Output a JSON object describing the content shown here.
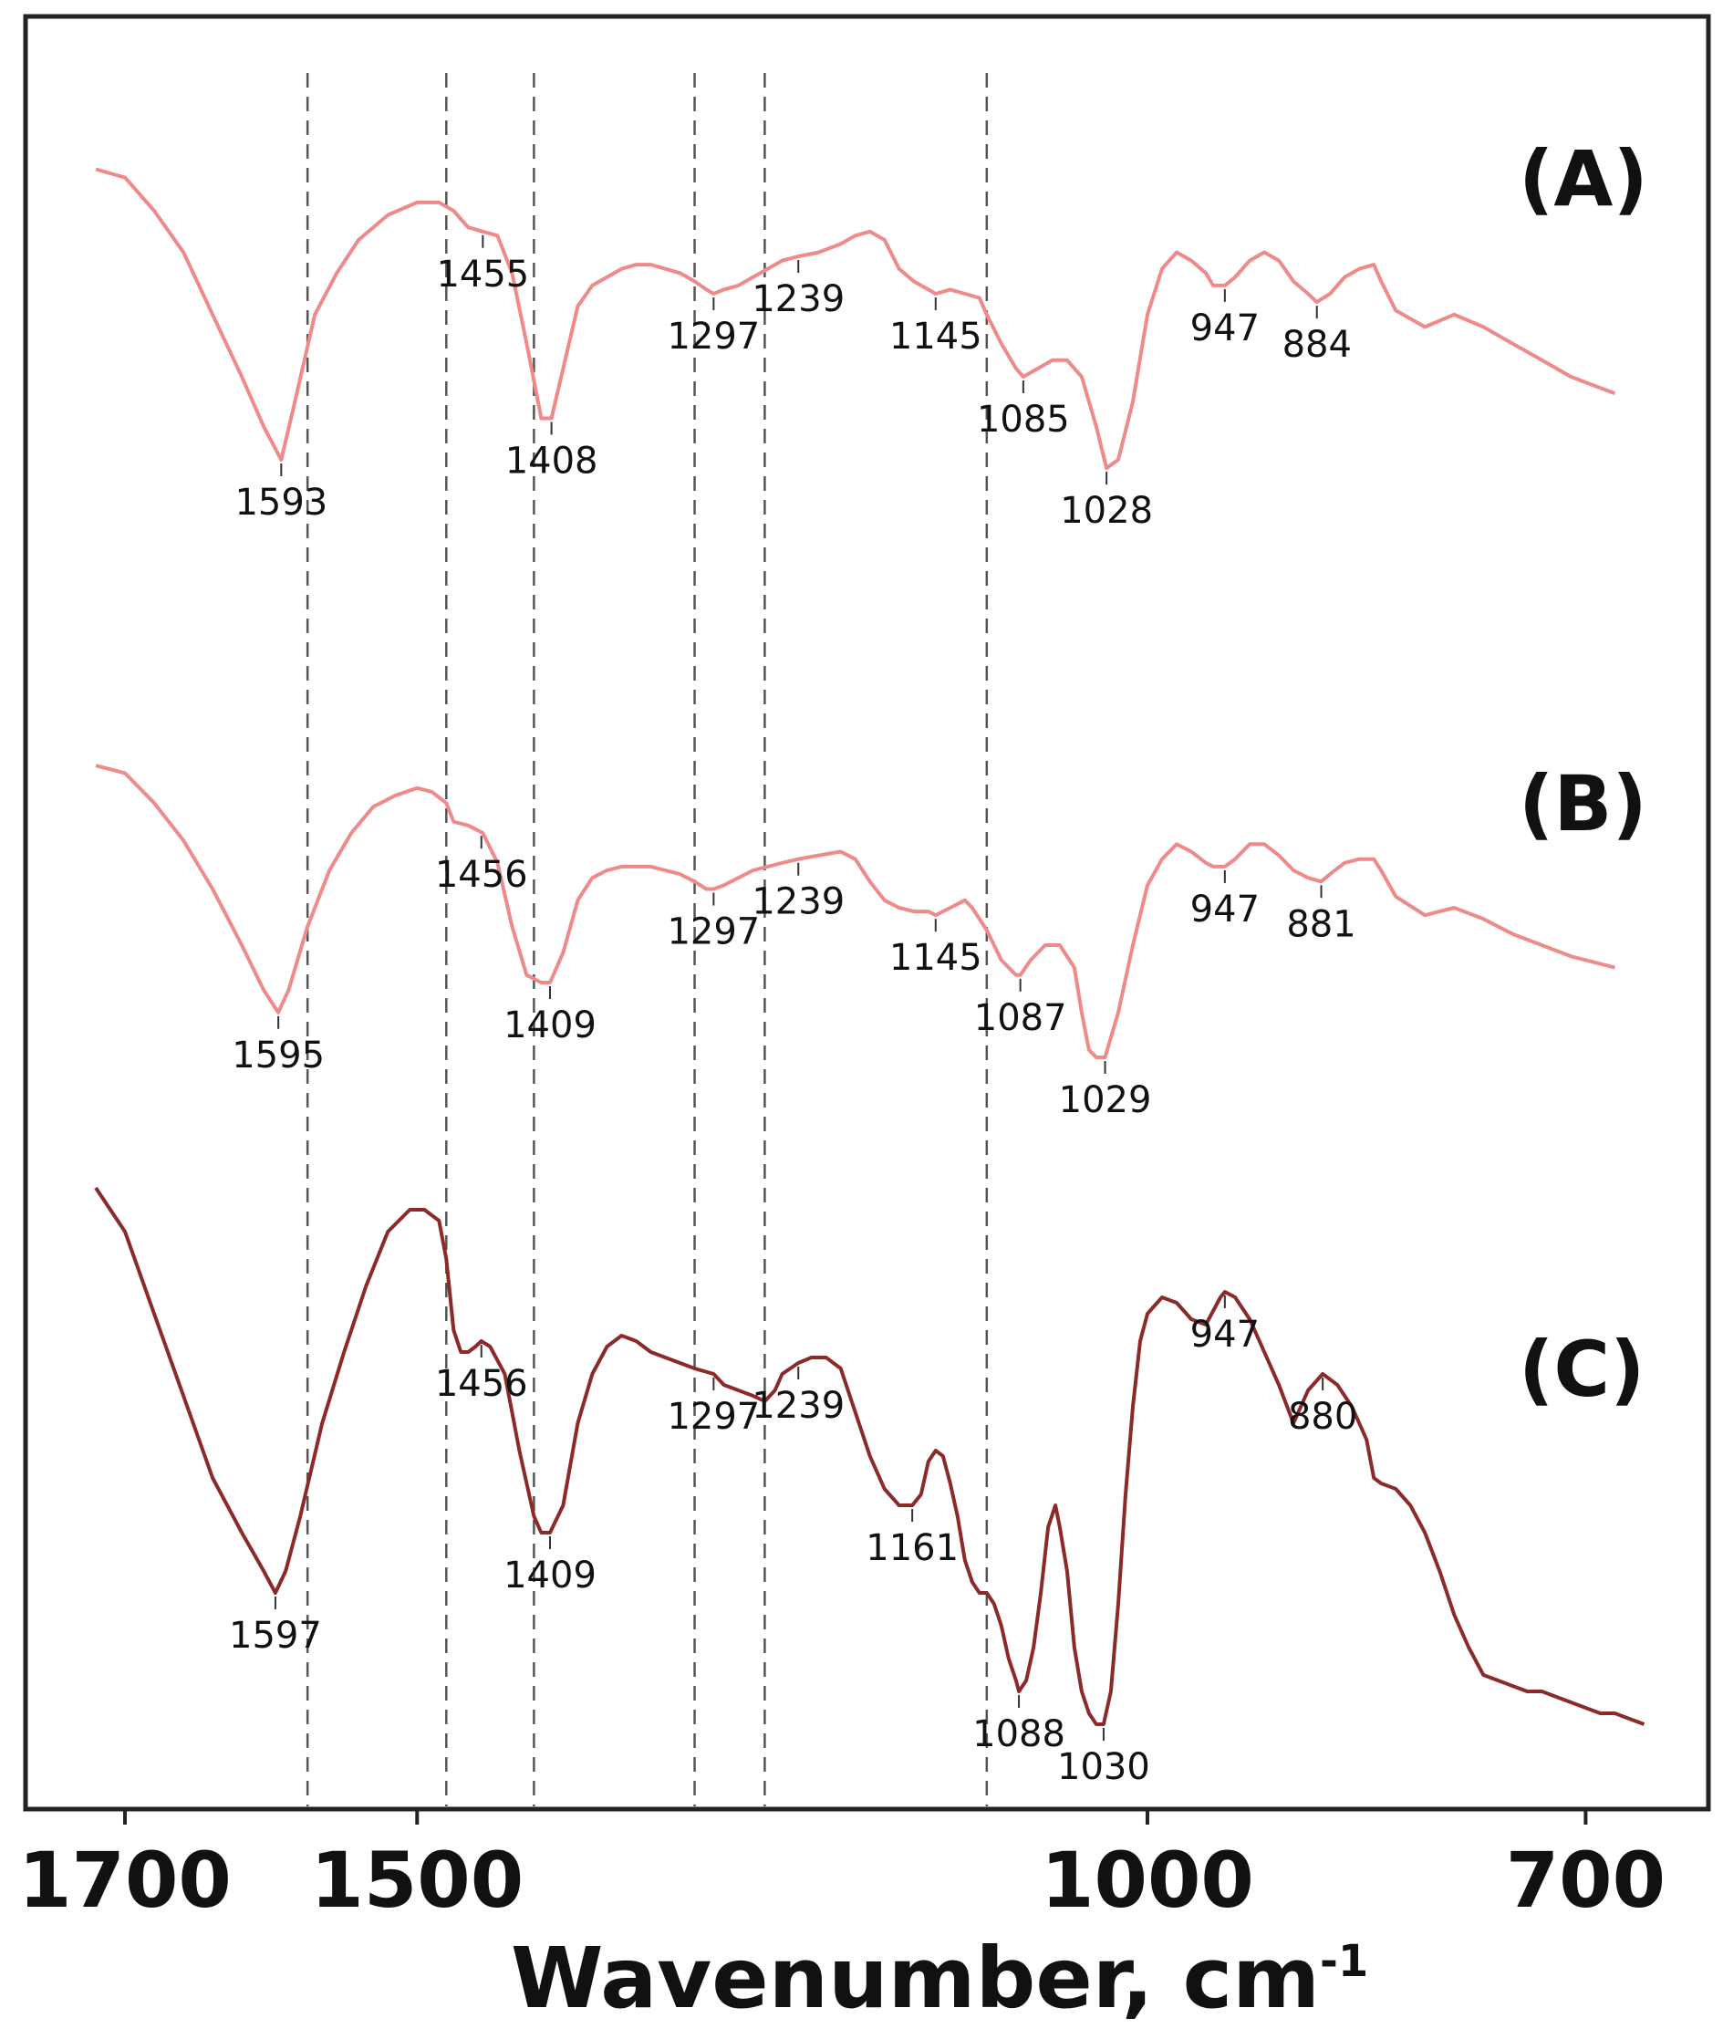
{
  "chart_data": {
    "type": "line",
    "title": "",
    "xlabel": "Wavenumber, cm",
    "xlabel_superscript": "-1",
    "x_reversed": true,
    "xlim": [
      1730,
      650
    ],
    "xticks": [
      1700,
      1500,
      1000,
      700
    ],
    "xtick_labels": [
      "1700",
      "1500",
      "1000",
      "700"
    ],
    "yaxis_visible": false,
    "reference_lines": [
      1575,
      1480,
      1420,
      1310,
      1262,
      1110
    ],
    "series": [
      {
        "name": "(A)",
        "color": "#ef8a8a",
        "x": [
          1720,
          1700,
          1680,
          1660,
          1640,
          1620,
          1605,
          1593,
          1585,
          1570,
          1555,
          1540,
          1520,
          1500,
          1485,
          1475,
          1465,
          1455,
          1445,
          1435,
          1425,
          1415,
          1408,
          1400,
          1390,
          1380,
          1370,
          1360,
          1350,
          1340,
          1330,
          1320,
          1310,
          1302,
          1297,
          1290,
          1280,
          1270,
          1260,
          1250,
          1239,
          1225,
          1210,
          1200,
          1190,
          1180,
          1170,
          1160,
          1150,
          1145,
          1135,
          1125,
          1115,
          1110,
          1100,
          1090,
          1085,
          1075,
          1065,
          1055,
          1045,
          1035,
          1028,
          1020,
          1010,
          1000,
          990,
          980,
          970,
          960,
          955,
          947,
          940,
          930,
          920,
          910,
          900,
          890,
          884,
          875,
          865,
          855,
          845,
          840,
          830,
          810,
          790,
          770,
          750,
          730,
          710,
          680
        ],
        "y": [
          90,
          88,
          80,
          70,
          55,
          40,
          28,
          20,
          32,
          55,
          65,
          73,
          79,
          82,
          82,
          80,
          76,
          75,
          74,
          65,
          48,
          30,
          30,
          42,
          57,
          62,
          64,
          66,
          67,
          67,
          66,
          65,
          63,
          61,
          60,
          61,
          62,
          64,
          66,
          68,
          69,
          70,
          72,
          74,
          75,
          73,
          66,
          63,
          61,
          60,
          61,
          60,
          59,
          55,
          48,
          42,
          40,
          42,
          44,
          44,
          40,
          28,
          18,
          20,
          34,
          55,
          66,
          70,
          68,
          65,
          62,
          62,
          64,
          68,
          70,
          68,
          63,
          60,
          58,
          60,
          64,
          66,
          67,
          63,
          56,
          52,
          55,
          52,
          48,
          44,
          40,
          36
        ]
      },
      {
        "name": "(B)",
        "color": "#ef8a8a",
        "x": [
          1720,
          1700,
          1680,
          1660,
          1640,
          1620,
          1605,
          1595,
          1588,
          1575,
          1560,
          1545,
          1530,
          1515,
          1500,
          1490,
          1480,
          1475,
          1465,
          1455,
          1445,
          1435,
          1425,
          1415,
          1409,
          1400,
          1390,
          1380,
          1370,
          1360,
          1350,
          1340,
          1330,
          1320,
          1310,
          1302,
          1297,
          1290,
          1280,
          1270,
          1260,
          1250,
          1239,
          1225,
          1210,
          1200,
          1190,
          1180,
          1170,
          1160,
          1150,
          1145,
          1135,
          1125,
          1120,
          1110,
          1100,
          1090,
          1087,
          1080,
          1070,
          1060,
          1050,
          1045,
          1040,
          1035,
          1029,
          1020,
          1010,
          1000,
          990,
          980,
          970,
          960,
          955,
          947,
          940,
          930,
          920,
          910,
          900,
          890,
          881,
          875,
          865,
          855,
          845,
          840,
          830,
          810,
          790,
          770,
          750,
          730,
          710,
          680
        ],
        "y": [
          88,
          86,
          78,
          68,
          55,
          40,
          28,
          22,
          28,
          45,
          60,
          70,
          77,
          80,
          82,
          81,
          78,
          73,
          72,
          70,
          62,
          45,
          32,
          30,
          30,
          38,
          52,
          58,
          60,
          61,
          61,
          61,
          60,
          59,
          57,
          55,
          55,
          56,
          58,
          60,
          61,
          62,
          63,
          64,
          65,
          63,
          57,
          52,
          50,
          49,
          49,
          48,
          50,
          52,
          50,
          44,
          36,
          32,
          32,
          36,
          40,
          40,
          34,
          22,
          12,
          10,
          10,
          22,
          40,
          56,
          63,
          67,
          65,
          62,
          61,
          61,
          63,
          67,
          67,
          64,
          60,
          58,
          57,
          59,
          62,
          63,
          63,
          60,
          53,
          48,
          50,
          47,
          43,
          40,
          37,
          34
        ]
      },
      {
        "name": "(C)",
        "color": "#8c2a2a",
        "x": [
          1720,
          1700,
          1680,
          1660,
          1640,
          1620,
          1605,
          1597,
          1590,
          1580,
          1565,
          1550,
          1535,
          1520,
          1505,
          1495,
          1485,
          1480,
          1475,
          1470,
          1465,
          1460,
          1456,
          1450,
          1440,
          1430,
          1420,
          1415,
          1409,
          1400,
          1390,
          1380,
          1370,
          1360,
          1350,
          1340,
          1330,
          1320,
          1310,
          1297,
          1290,
          1280,
          1270,
          1262,
          1255,
          1250,
          1239,
          1230,
          1220,
          1210,
          1200,
          1190,
          1180,
          1170,
          1161,
          1155,
          1150,
          1145,
          1140,
          1135,
          1130,
          1125,
          1120,
          1115,
          1110,
          1105,
          1100,
          1095,
          1090,
          1088,
          1083,
          1078,
          1073,
          1068,
          1063,
          1060,
          1055,
          1050,
          1045,
          1040,
          1035,
          1030,
          1025,
          1020,
          1015,
          1010,
          1005,
          1000,
          990,
          980,
          970,
          960,
          950,
          947,
          940,
          930,
          920,
          910,
          900,
          890,
          880,
          870,
          860,
          850,
          845,
          840,
          830,
          820,
          810,
          800,
          790,
          780,
          770,
          760,
          750,
          740,
          730,
          720,
          710,
          700,
          690,
          680,
          670,
          660
        ],
        "y": [
          98,
          90,
          75,
          60,
          45,
          35,
          28,
          24,
          28,
          38,
          55,
          68,
          80,
          90,
          94,
          94,
          92,
          85,
          72,
          68,
          68,
          69,
          70,
          69,
          64,
          50,
          38,
          35,
          35,
          40,
          55,
          64,
          69,
          71,
          70,
          68,
          67,
          66,
          65,
          64,
          62,
          61,
          60,
          59,
          61,
          64,
          66,
          67,
          67,
          65,
          57,
          49,
          43,
          40,
          40,
          42,
          48,
          50,
          49,
          44,
          38,
          30,
          26,
          24,
          24,
          22,
          18,
          12,
          8,
          6,
          8,
          14,
          24,
          36,
          40,
          36,
          28,
          14,
          6,
          2,
          0,
          0,
          6,
          22,
          42,
          58,
          70,
          75,
          78,
          77,
          74,
          73,
          78,
          79,
          78,
          74,
          68,
          62,
          55,
          61,
          64,
          62,
          58,
          52,
          45,
          44,
          43,
          40,
          35,
          28,
          20,
          14,
          9,
          8,
          7,
          6,
          6,
          5,
          4,
          3,
          2,
          2,
          1,
          0
        ]
      }
    ],
    "peak_labels": [
      {
        "series": "(A)",
        "x": 1593,
        "label": "1593"
      },
      {
        "series": "(A)",
        "x": 1455,
        "label": "1455"
      },
      {
        "series": "(A)",
        "x": 1408,
        "label": "1408"
      },
      {
        "series": "(A)",
        "x": 1297,
        "label": "1297"
      },
      {
        "series": "(A)",
        "x": 1239,
        "label": "1239"
      },
      {
        "series": "(A)",
        "x": 1145,
        "label": "1145"
      },
      {
        "series": "(A)",
        "x": 1085,
        "label": "1085"
      },
      {
        "series": "(A)",
        "x": 1028,
        "label": "1028"
      },
      {
        "series": "(A)",
        "x": 947,
        "label": "947"
      },
      {
        "series": "(A)",
        "x": 884,
        "label": "884"
      },
      {
        "series": "(B)",
        "x": 1595,
        "label": "1595"
      },
      {
        "series": "(B)",
        "x": 1456,
        "label": "1456"
      },
      {
        "series": "(B)",
        "x": 1409,
        "label": "1409"
      },
      {
        "series": "(B)",
        "x": 1297,
        "label": "1297"
      },
      {
        "series": "(B)",
        "x": 1239,
        "label": "1239"
      },
      {
        "series": "(B)",
        "x": 1145,
        "label": "1145"
      },
      {
        "series": "(B)",
        "x": 1087,
        "label": "1087"
      },
      {
        "series": "(B)",
        "x": 1029,
        "label": "1029"
      },
      {
        "series": "(B)",
        "x": 947,
        "label": "947"
      },
      {
        "series": "(B)",
        "x": 881,
        "label": "881"
      },
      {
        "series": "(C)",
        "x": 1597,
        "label": "1597"
      },
      {
        "series": "(C)",
        "x": 1456,
        "label": "1456"
      },
      {
        "series": "(C)",
        "x": 1409,
        "label": "1409"
      },
      {
        "series": "(C)",
        "x": 1297,
        "label": "1297"
      },
      {
        "series": "(C)",
        "x": 1239,
        "label": "1239"
      },
      {
        "series": "(C)",
        "x": 1161,
        "label": "1161"
      },
      {
        "series": "(C)",
        "x": 1088,
        "label": "1088"
      },
      {
        "series": "(C)",
        "x": 1030,
        "label": "1030"
      },
      {
        "series": "(C)",
        "x": 947,
        "label": "947"
      },
      {
        "series": "(C)",
        "x": 880,
        "label": "880"
      }
    ]
  }
}
